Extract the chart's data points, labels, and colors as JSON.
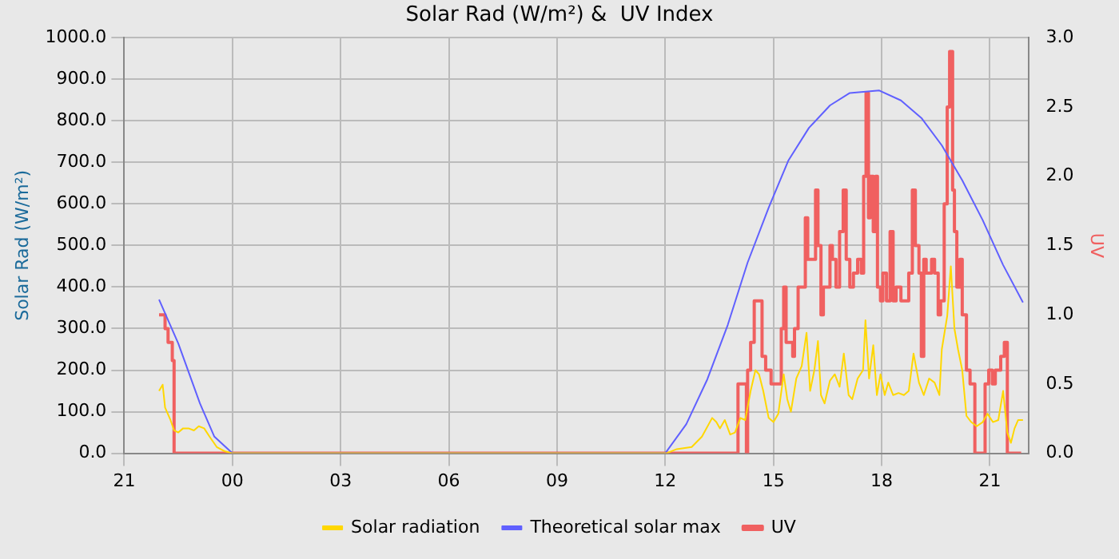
{
  "chart_data": {
    "type": "line",
    "title": "Solar Rad (W/m²) &  UV Index",
    "ylabel": "Solar Rad (W/m²)",
    "y2label": "UV",
    "xlim": [
      "2000-01-01T21:00",
      "2000-01-02T22:04"
    ],
    "xticks": [
      {
        "value": "2000-01-01T21:00",
        "label": "21"
      },
      {
        "value": "2000-01-02T00:00",
        "label": "00"
      },
      {
        "value": "2000-01-02T03:00",
        "label": "03"
      },
      {
        "value": "2000-01-02T06:00",
        "label": "06"
      },
      {
        "value": "2000-01-02T09:00",
        "label": "09"
      },
      {
        "value": "2000-01-02T12:00",
        "label": "12"
      },
      {
        "value": "2000-01-02T15:00",
        "label": "15"
      },
      {
        "value": "2000-01-02T18:00",
        "label": "18"
      },
      {
        "value": "2000-01-02T21:00",
        "label": "21"
      }
    ],
    "ylim": [
      0,
      1000
    ],
    "yticks": [
      {
        "value": 0,
        "label": "0.0"
      },
      {
        "value": 100,
        "label": "100.0"
      },
      {
        "value": 200,
        "label": "200.0"
      },
      {
        "value": 300,
        "label": "300.0"
      },
      {
        "value": 400,
        "label": "400.0"
      },
      {
        "value": 500,
        "label": "500.0"
      },
      {
        "value": 600,
        "label": "600.0"
      },
      {
        "value": 700,
        "label": "700.0"
      },
      {
        "value": 800,
        "label": "800.0"
      },
      {
        "value": 900,
        "label": "900.0"
      },
      {
        "value": 1000,
        "label": "1000.0"
      }
    ],
    "y2lim": [
      0,
      3
    ],
    "y2ticks": [
      {
        "value": 0,
        "label": "0.0"
      },
      {
        "value": 0.5,
        "label": "0.5"
      },
      {
        "value": 1,
        "label": "1.0"
      },
      {
        "value": 1.5,
        "label": "1.5"
      },
      {
        "value": 2,
        "label": "2.0"
      },
      {
        "value": 2.5,
        "label": "2.5"
      },
      {
        "value": 3,
        "label": "3.0"
      }
    ],
    "grid": true,
    "legend": "bottom",
    "series": [
      {
        "name": "Solar radiation",
        "type": "line",
        "color": "#ffd700",
        "x": [
          "2000-01-01T21:58",
          "2000-01-01T22:04",
          "2000-01-01T22:08",
          "2000-01-01T22:17",
          "2000-01-01T22:23",
          "2000-01-01T22:30",
          "2000-01-01T22:38",
          "2000-01-01T22:47",
          "2000-01-01T22:56",
          "2000-01-01T23:04",
          "2000-01-01T23:13",
          "2000-01-01T23:22",
          "2000-01-01T23:34",
          "2000-01-01T23:47",
          "2000-01-02T00:00",
          "2000-01-02T12:02",
          "2000-01-02T12:19",
          "2000-01-02T12:44",
          "2000-01-02T13:01",
          "2000-01-02T13:18",
          "2000-01-02T13:25",
          "2000-01-02T13:31",
          "2000-01-02T13:39",
          "2000-01-02T13:48",
          "2000-01-02T13:56",
          "2000-01-02T14:05",
          "2000-01-02T14:13",
          "2000-01-02T14:22",
          "2000-01-02T14:30",
          "2000-01-02T14:36",
          "2000-01-02T14:43",
          "2000-01-02T14:52",
          "2000-01-02T15:00",
          "2000-01-02T15:08",
          "2000-01-02T15:17",
          "2000-01-02T15:23",
          "2000-01-02T15:29",
          "2000-01-02T15:38",
          "2000-01-02T15:47",
          "2000-01-02T15:55",
          "2000-01-02T16:01",
          "2000-01-02T16:08",
          "2000-01-02T16:14",
          "2000-01-02T16:19",
          "2000-01-02T16:25",
          "2000-01-02T16:34",
          "2000-01-02T16:42",
          "2000-01-02T16:50",
          "2000-01-02T16:57",
          "2000-01-02T17:05",
          "2000-01-02T17:11",
          "2000-01-02T17:20",
          "2000-01-02T17:29",
          "2000-01-02T17:33",
          "2000-01-02T17:39",
          "2000-01-02T17:46",
          "2000-01-02T17:52",
          "2000-01-02T17:58",
          "2000-01-02T18:05",
          "2000-01-02T18:11",
          "2000-01-02T18:19",
          "2000-01-02T18:28",
          "2000-01-02T18:37",
          "2000-01-02T18:45",
          "2000-01-02T18:53",
          "2000-01-02T19:02",
          "2000-01-02T19:10",
          "2000-01-02T19:19",
          "2000-01-02T19:28",
          "2000-01-02T19:36",
          "2000-01-02T19:40",
          "2000-01-02T19:49",
          "2000-01-02T19:55",
          "2000-01-02T20:01",
          "2000-01-02T20:07",
          "2000-01-02T20:14",
          "2000-01-02T20:21",
          "2000-01-02T20:29",
          "2000-01-02T20:38",
          "2000-01-02T20:48",
          "2000-01-02T20:56",
          "2000-01-02T21:05",
          "2000-01-02T21:14",
          "2000-01-02T21:22",
          "2000-01-02T21:29",
          "2000-01-02T21:35",
          "2000-01-02T21:41",
          "2000-01-02T21:47",
          "2000-01-02T21:55"
        ],
        "values": [
          150,
          165,
          110,
          80,
          55,
          50,
          60,
          60,
          55,
          65,
          60,
          40,
          15,
          5,
          0,
          0,
          10,
          15,
          40,
          85,
          75,
          60,
          80,
          45,
          50,
          85,
          80,
          150,
          200,
          190,
          150,
          85,
          75,
          95,
          190,
          130,
          100,
          180,
          210,
          290,
          150,
          200,
          270,
          140,
          120,
          175,
          190,
          160,
          240,
          140,
          130,
          180,
          200,
          320,
          180,
          260,
          140,
          190,
          140,
          170,
          140,
          145,
          140,
          150,
          240,
          170,
          140,
          180,
          170,
          140,
          250,
          330,
          450,
          300,
          250,
          200,
          90,
          75,
          65,
          75,
          95,
          75,
          80,
          150,
          50,
          25,
          60,
          80,
          80
        ]
      },
      {
        "name": "Theoretical solar max",
        "type": "line",
        "color": "#6060ff",
        "x": [
          "2000-01-01T21:58",
          "2000-01-01T22:30",
          "2000-01-01T23:06",
          "2000-01-01T23:30",
          "2000-01-02T00:00",
          "2000-01-02T12:00",
          "2000-01-02T12:35",
          "2000-01-02T13:10",
          "2000-01-02T13:44",
          "2000-01-02T14:17",
          "2000-01-02T14:52",
          "2000-01-02T15:25",
          "2000-01-02T15:59",
          "2000-01-02T16:34",
          "2000-01-02T17:07",
          "2000-01-02T17:56",
          "2000-01-02T18:32",
          "2000-01-02T19:06",
          "2000-01-02T19:40",
          "2000-01-02T20:14",
          "2000-01-02T20:48",
          "2000-01-02T21:22",
          "2000-01-02T21:55"
        ],
        "values": [
          370,
          264,
          120,
          40,
          0,
          0,
          70,
          178,
          309,
          459,
          591,
          705,
          783,
          837,
          867,
          873,
          849,
          807,
          741,
          657,
          561,
          453,
          363
        ]
      },
      {
        "name": "UV",
        "type": "step",
        "axis": "y2",
        "color": "#f06060",
        "x": [
          "2000-01-01T21:58",
          "2000-01-01T22:08",
          "2000-01-01T22:13",
          "2000-01-01T22:20",
          "2000-01-01T22:23",
          "2000-01-02T14:01",
          "2000-01-02T14:09",
          "2000-01-02T14:15",
          "2000-01-02T14:17",
          "2000-01-02T14:22",
          "2000-01-02T14:28",
          "2000-01-02T14:36",
          "2000-01-02T14:41",
          "2000-01-02T14:47",
          "2000-01-02T14:56",
          "2000-01-02T15:08",
          "2000-01-02T15:13",
          "2000-01-02T15:17",
          "2000-01-02T15:21",
          "2000-01-02T15:25",
          "2000-01-02T15:32",
          "2000-01-02T15:35",
          "2000-01-02T15:41",
          "2000-01-02T15:47",
          "2000-01-02T15:53",
          "2000-01-02T15:57",
          "2000-01-02T16:03",
          "2000-01-02T16:10",
          "2000-01-02T16:14",
          "2000-01-02T16:19",
          "2000-01-02T16:23",
          "2000-01-02T16:29",
          "2000-01-02T16:34",
          "2000-01-02T16:38",
          "2000-01-02T16:44",
          "2000-01-02T16:50",
          "2000-01-02T16:56",
          "2000-01-02T17:01",
          "2000-01-02T17:07",
          "2000-01-02T17:13",
          "2000-01-02T17:20",
          "2000-01-02T17:26",
          "2000-01-02T17:30",
          "2000-01-02T17:34",
          "2000-01-02T17:38",
          "2000-01-02T17:41",
          "2000-01-02T17:46",
          "2000-01-02T17:50",
          "2000-01-02T17:53",
          "2000-01-02T17:58",
          "2000-01-02T18:02",
          "2000-01-02T18:08",
          "2000-01-02T18:14",
          "2000-01-02T18:19",
          "2000-01-02T18:24",
          "2000-01-02T18:32",
          "2000-01-02T18:38",
          "2000-01-02T18:45",
          "2000-01-02T18:51",
          "2000-01-02T18:56",
          "2000-01-02T19:02",
          "2000-01-02T19:06",
          "2000-01-02T19:10",
          "2000-01-02T19:14",
          "2000-01-02T19:23",
          "2000-01-02T19:28",
          "2000-01-02T19:34",
          "2000-01-02T19:38",
          "2000-01-02T19:44",
          "2000-01-02T19:49",
          "2000-01-02T19:53",
          "2000-01-02T19:58",
          "2000-01-02T20:01",
          "2000-01-02T20:05",
          "2000-01-02T20:10",
          "2000-01-02T20:14",
          "2000-01-02T20:21",
          "2000-01-02T20:27",
          "2000-01-02T20:35",
          "2000-01-02T20:48",
          "2000-01-02T20:52",
          "2000-01-02T20:58",
          "2000-01-02T21:04",
          "2000-01-02T21:09",
          "2000-01-02T21:18",
          "2000-01-02T21:24",
          "2000-01-02T21:29",
          "2000-01-02T21:52"
        ],
        "values": [
          1,
          0.9,
          0.8,
          0.67,
          0,
          0.5,
          0.5,
          0,
          0.6,
          0.8,
          1.1,
          1.1,
          0.7,
          0.6,
          0.5,
          0.5,
          0.9,
          1.2,
          0.8,
          0.8,
          0.7,
          0.9,
          1.2,
          1.2,
          1.7,
          1.4,
          1.4,
          1.9,
          1.5,
          1,
          1.2,
          1.2,
          1.5,
          1.4,
          1.2,
          1.6,
          1.9,
          1.4,
          1.2,
          1.3,
          1.4,
          1.3,
          2,
          2.6,
          1.7,
          2,
          1.6,
          2,
          1.2,
          1.1,
          1.3,
          1.1,
          1.6,
          1.1,
          1.2,
          1.1,
          1.1,
          1.3,
          1.9,
          1.5,
          1.3,
          0.7,
          1.4,
          1.3,
          1.4,
          1.3,
          1,
          1.1,
          1.8,
          2.5,
          2.9,
          1.9,
          1.6,
          1.2,
          1.4,
          1,
          0.6,
          0.5,
          0,
          0,
          0.5,
          0.6,
          0.5,
          0.6,
          0.7,
          0.8,
          0,
          0
        ]
      }
    ]
  }
}
